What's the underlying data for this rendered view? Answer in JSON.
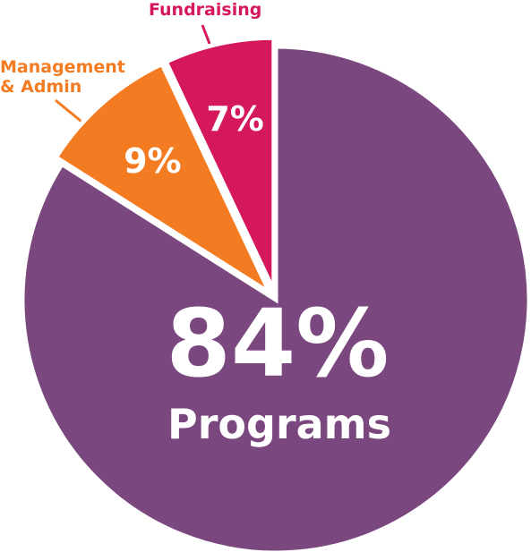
{
  "chart_data": {
    "type": "pie",
    "categories": [
      "Programs",
      "Management & Admin",
      "Fundraising"
    ],
    "values": [
      84,
      9,
      7
    ],
    "value_labels": [
      "84%",
      "9%",
      "7%"
    ],
    "colors": [
      "#7a477f",
      "#f37b21",
      "#d5175d"
    ]
  }
}
